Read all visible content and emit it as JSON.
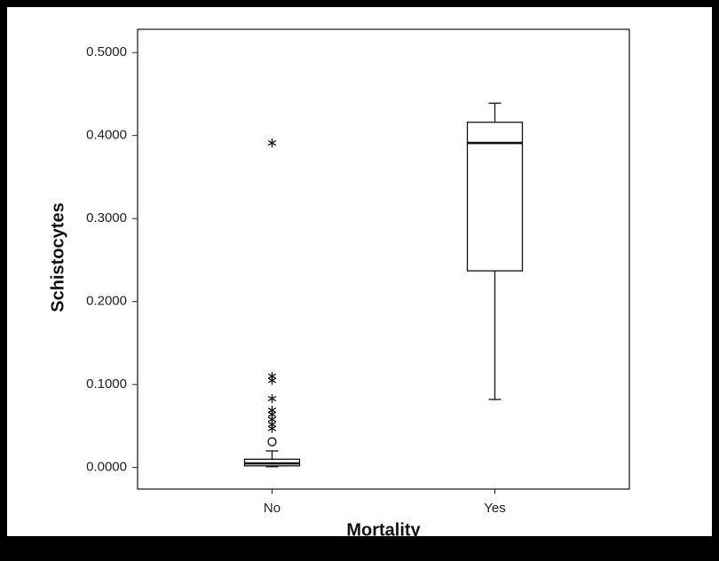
{
  "chart_data": {
    "type": "box",
    "x_label": "Mortality",
    "y_label": "Schistocytes",
    "categories": [
      "No",
      "Yes"
    ],
    "boxes": [
      {
        "whisker_low": 0.001,
        "q1": 0.002,
        "median": 0.005,
        "q3": 0.01,
        "whisker_high": 0.02,
        "outliers": [
          0.031
        ],
        "extremes": [
          0.391,
          0.11,
          0.105,
          0.083,
          0.069,
          0.064,
          0.058,
          0.052,
          0.047
        ]
      },
      {
        "whisker_low": 0.082,
        "q1": 0.237,
        "median": 0.391,
        "q3": 0.416,
        "whisker_high": 0.439,
        "outliers": [],
        "extremes": []
      }
    ],
    "ylim": [
      -0.026,
      0.528
    ],
    "yticks": [
      {
        "value": 0,
        "label": "0.0000"
      },
      {
        "value": 0.1,
        "label": "0.1000"
      },
      {
        "value": 0.2,
        "label": "0.2000"
      },
      {
        "value": 0.3,
        "label": "0.3000"
      },
      {
        "value": 0.4,
        "label": "0.4000"
      },
      {
        "value": 0.5,
        "label": "0.5000"
      }
    ],
    "color": "#ffffff"
  }
}
